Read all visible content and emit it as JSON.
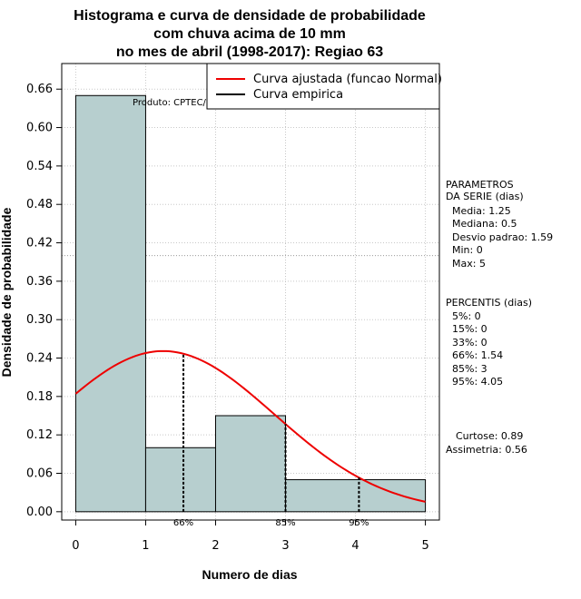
{
  "chart_data": {
    "type": "bar",
    "title": [
      "Histograma e curva de densidade de probabilidade",
      "com chuva acima de 10 mm",
      "no mes de abril (1998-2017): Regiao 63"
    ],
    "xlabel": "Numero de dias",
    "ylabel": "Densidade de probabilidade",
    "xlim": [
      -0.2,
      5.2
    ],
    "ylim": [
      -0.013,
      0.7
    ],
    "xticks": [
      0,
      1,
      2,
      3,
      4,
      5
    ],
    "yticks": [
      0.0,
      0.06,
      0.12,
      0.18,
      0.24,
      0.3,
      0.36,
      0.42,
      0.48,
      0.54,
      0.6,
      0.66
    ],
    "ytick_labels": [
      "0.00",
      "0.06",
      "0.12",
      "0.18",
      "0.24",
      "0.30",
      "0.36",
      "0.42",
      "0.48",
      "0.54",
      "0.60",
      "0.66"
    ],
    "bins": [
      {
        "start": 0,
        "end": 1,
        "density": 0.65
      },
      {
        "start": 1,
        "end": 2,
        "density": 0.1
      },
      {
        "start": 2,
        "end": 3,
        "density": 0.15
      },
      {
        "start": 3,
        "end": 5,
        "density": 0.05
      }
    ],
    "fitted_curve": {
      "name": "Curva ajustada (funcao Normal)",
      "distribution": "normal",
      "mean": 1.25,
      "sd": 1.59,
      "x_range": [
        0,
        5
      ],
      "color": "#ee0000"
    },
    "empirical_curve": {
      "name": "Curva empirica",
      "color": "#000000"
    },
    "percentile_markers": [
      {
        "x": 1.54,
        "label": "66%"
      },
      {
        "x": 3,
        "label": "85%"
      },
      {
        "x": 4.05,
        "label": "95%"
      }
    ],
    "reference_line_y": 0.4,
    "grid": true,
    "legend_position": "top-right",
    "annotation": "Produto: CPTEC/INPE",
    "bar_color": "#b7cfcf"
  },
  "parameters": {
    "heading": [
      "PARAMETROS",
      "DA SERIE (dias)"
    ],
    "lines": [
      "Media: 1.25",
      "Mediana: 0.5",
      "Desvio padrao: 1.59",
      "Min: 0",
      "Max: 5"
    ]
  },
  "percentis": {
    "heading": "PERCENTIS (dias)",
    "lines": [
      "5%: 0",
      "15%: 0",
      "33%: 0",
      "66%: 1.54",
      "85%: 3",
      "95%: 4.05"
    ]
  },
  "shape": {
    "lines": [
      "Curtose: 0.89",
      "Assimetria: 0.56"
    ]
  }
}
